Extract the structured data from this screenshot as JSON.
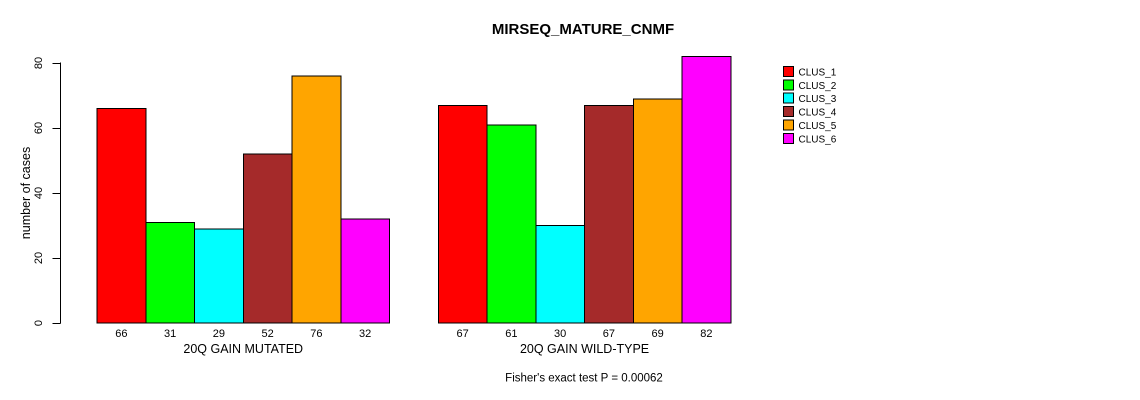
{
  "chart_data": {
    "type": "bar",
    "title": "MIRSEQ_MATURE_CNMF",
    "ylabel": "number of cases",
    "xlabel": "",
    "ylim": [
      0,
      80
    ],
    "yticks": [
      0,
      20,
      40,
      60,
      80
    ],
    "grid": false,
    "legend_position": "right",
    "categories": [
      "20Q GAIN MUTATED",
      "20Q GAIN WILD-TYPE"
    ],
    "series": [
      {
        "name": "CLUS_1",
        "color": "#FF0000",
        "values": [
          66,
          67
        ]
      },
      {
        "name": "CLUS_2",
        "color": "#00FF00",
        "values": [
          31,
          61
        ]
      },
      {
        "name": "CLUS_3",
        "color": "#00FFFF",
        "values": [
          29,
          30
        ]
      },
      {
        "name": "CLUS_4",
        "color": "#A52A2A",
        "values": [
          52,
          67
        ]
      },
      {
        "name": "CLUS_5",
        "color": "#FFA500",
        "values": [
          76,
          69
        ]
      },
      {
        "name": "CLUS_6",
        "color": "#FF00FF",
        "values": [
          32,
          82
        ]
      }
    ],
    "annotation": "Fisher's exact test P = 0.00062",
    "bar_border_color": "#000000",
    "axis_color": "#000000"
  }
}
